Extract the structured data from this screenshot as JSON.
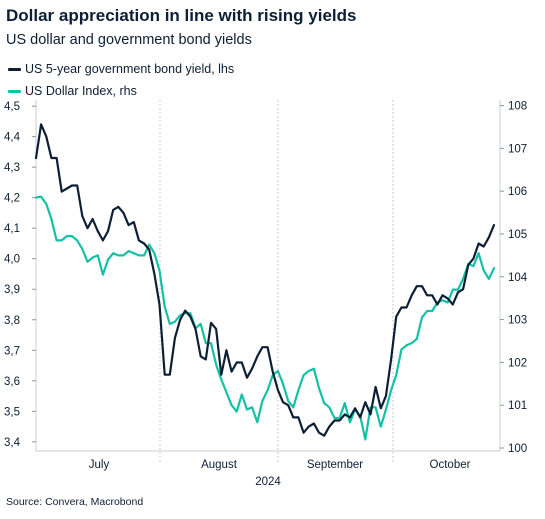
{
  "title": "Dollar appreciation in line with rising yields",
  "subtitle": "US dollar and government bond yields",
  "legend": [
    {
      "label": "US 5-year government bond yield, lhs",
      "color": "#0d1f35"
    },
    {
      "label": "US Dollar Index, rhs",
      "color": "#14c0a6"
    }
  ],
  "source": "Source: Convera, Macrobond",
  "chart_data": {
    "type": "line",
    "title": "Dollar appreciation in line with rising yields",
    "subtitle": "US dollar and government bond yields",
    "x_label": "2024",
    "x_tick_labels": [
      "July",
      "August",
      "September",
      "October"
    ],
    "grid": "vertical dotted month separators",
    "left_axis": {
      "min": 3.37,
      "max": 4.52,
      "ticks": [
        "3,4",
        "3,5",
        "3,6",
        "3,7",
        "3,8",
        "3,9",
        "4,0",
        "4,1",
        "4,2",
        "4,3",
        "4,4",
        "4,5"
      ]
    },
    "right_axis": {
      "min": 99.93,
      "max": 108.13,
      "ticks": [
        "100",
        "101",
        "102",
        "103",
        "104",
        "105",
        "106",
        "107",
        "108"
      ]
    },
    "series": [
      {
        "name": "US 5-year government bond yield, lhs",
        "axis": "left",
        "color": "#0d1f35",
        "values": [
          4.33,
          4.44,
          4.4,
          4.33,
          4.33,
          4.22,
          4.23,
          4.24,
          4.24,
          4.14,
          4.1,
          4.13,
          4.09,
          4.06,
          4.09,
          4.16,
          4.17,
          4.15,
          4.11,
          4.12,
          4.06,
          4.05,
          4.03,
          3.95,
          3.85,
          3.62,
          3.62,
          3.74,
          3.8,
          3.83,
          3.81,
          3.77,
          3.68,
          3.67,
          3.79,
          3.77,
          3.62,
          3.7,
          3.63,
          3.66,
          3.66,
          3.61,
          3.64,
          3.68,
          3.71,
          3.71,
          3.63,
          3.57,
          3.53,
          3.52,
          3.48,
          3.48,
          3.43,
          3.45,
          3.46,
          3.43,
          3.42,
          3.45,
          3.47,
          3.47,
          3.49,
          3.48,
          3.51,
          3.48,
          3.53,
          3.49,
          3.58,
          3.51,
          3.55,
          3.67,
          3.81,
          3.84,
          3.84,
          3.88,
          3.91,
          3.91,
          3.88,
          3.88,
          3.85,
          3.88,
          3.87,
          3.85,
          3.89,
          3.9,
          3.98,
          4.0,
          4.05,
          4.04,
          4.07,
          4.11
        ]
      },
      {
        "name": "US Dollar Index, rhs",
        "axis": "right",
        "color": "#14c0a6",
        "values": [
          105.85,
          105.87,
          105.7,
          105.35,
          104.85,
          104.85,
          104.95,
          104.95,
          104.85,
          104.65,
          104.35,
          104.45,
          104.5,
          104.05,
          104.4,
          104.55,
          104.5,
          104.5,
          104.6,
          104.55,
          104.5,
          104.5,
          104.75,
          104.55,
          104.15,
          103.3,
          102.9,
          102.95,
          103.1,
          103.15,
          103.15,
          102.8,
          102.9,
          102.45,
          102.45,
          101.95,
          101.6,
          101.3,
          101.0,
          100.85,
          101.25,
          100.9,
          100.95,
          100.6,
          101.1,
          101.35,
          101.7,
          101.8,
          101.5,
          101.1,
          100.95,
          101.35,
          101.7,
          101.8,
          101.85,
          101.4,
          101.05,
          100.95,
          100.7,
          100.7,
          101.05,
          100.6,
          100.9,
          100.75,
          100.2,
          100.95,
          100.95,
          100.5,
          100.9,
          101.35,
          101.7,
          102.3,
          102.4,
          102.45,
          102.55,
          103.05,
          103.2,
          103.2,
          103.4,
          103.45,
          103.4,
          103.7,
          103.7,
          103.95,
          104.3,
          104.25,
          104.55,
          104.15,
          103.95,
          104.2
        ]
      }
    ]
  }
}
